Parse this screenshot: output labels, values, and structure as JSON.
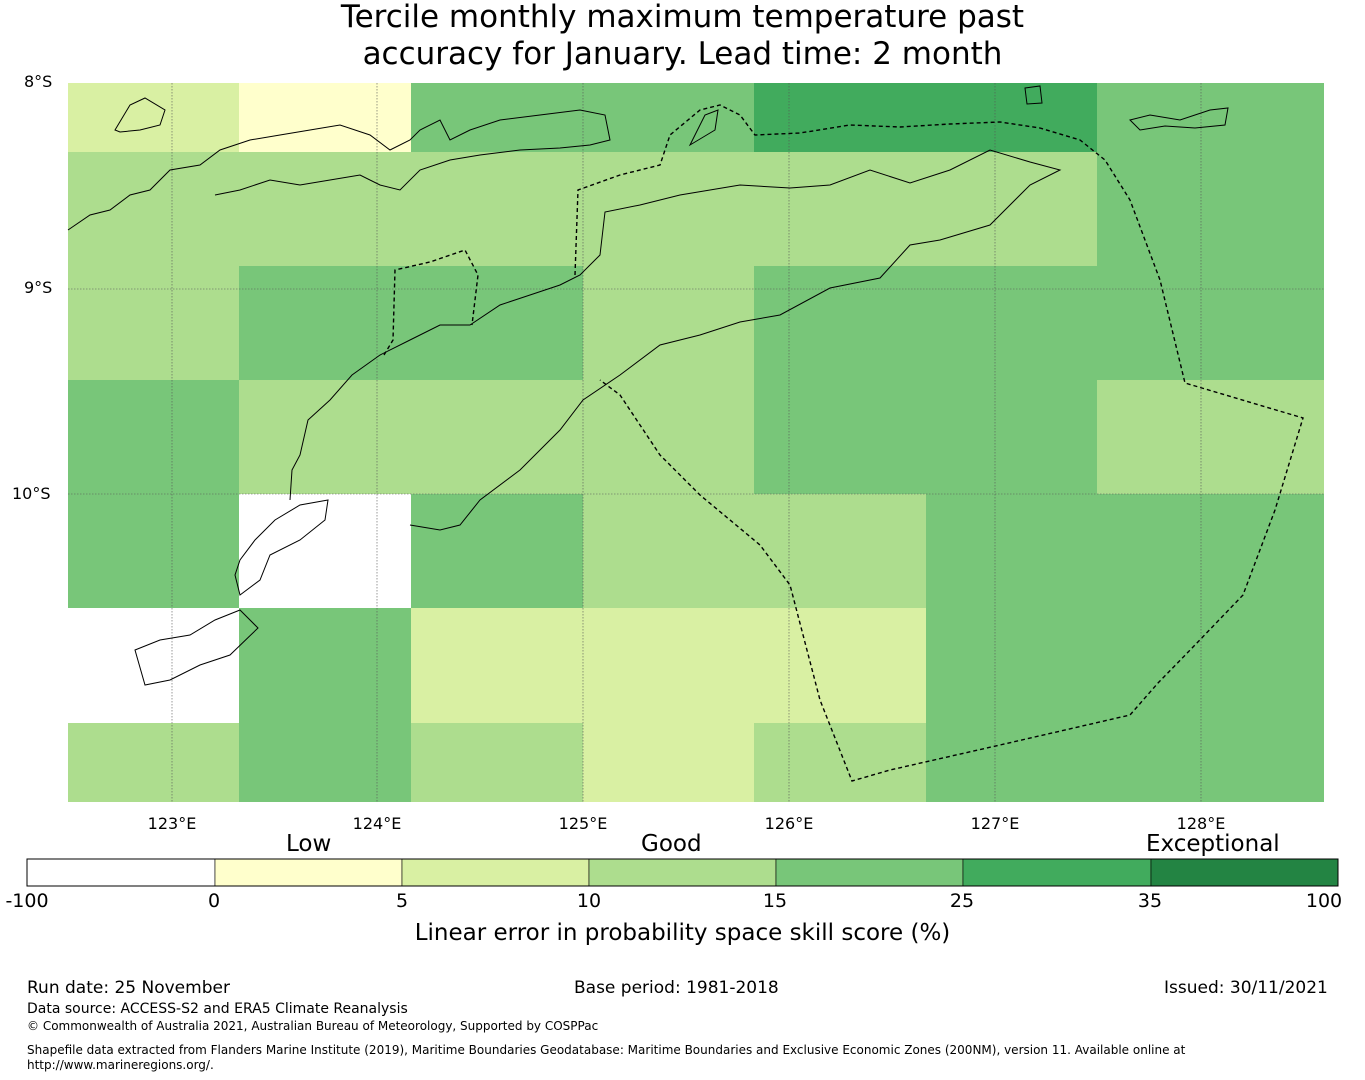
{
  "title": {
    "line1": "Tercile monthly maximum temperature past",
    "line2": "accuracy for January. Lead time: 2 month"
  },
  "map": {
    "lat_labels": [
      "8°S",
      "9°S",
      "10°S"
    ],
    "lon_labels": [
      "123°E",
      "124°E",
      "125°E",
      "126°E",
      "127°E",
      "128°E"
    ],
    "grid_values": [
      [
        5,
        0,
        15,
        15,
        25,
        25,
        15
      ],
      [
        10,
        10,
        10,
        10,
        10,
        10,
        15
      ],
      [
        10,
        15,
        15,
        10,
        15,
        15,
        15
      ],
      [
        15,
        10,
        10,
        10,
        15,
        15,
        10
      ],
      [
        15,
        -100,
        15,
        10,
        10,
        15,
        15
      ],
      [
        -100,
        15,
        5,
        5,
        5,
        15,
        15
      ],
      [
        10,
        15,
        10,
        5,
        10,
        15,
        15
      ]
    ]
  },
  "colorbar": {
    "categories": [
      "Low",
      "Good",
      "Exceptional"
    ],
    "ticks": [
      "-100",
      "0",
      "5",
      "10",
      "15",
      "25",
      "35",
      "100"
    ],
    "colors": [
      "#ffffff",
      "#ffffcc",
      "#d9f0a3",
      "#addd8e",
      "#78c679",
      "#41ab5d",
      "#238443"
    ],
    "label": "Linear error in probability space skill score (%)"
  },
  "footer": {
    "run_date": "Run date: 25 November",
    "base_period": "Base period: 1981-2018",
    "issued": "Issued: 30/11/2021",
    "data_source": "Data source: ACCESS-S2 and ERA5 Climate Reanalysis",
    "copyright": "© Commonwealth of Australia 2021, Australian Bureau of Meteorology, Supported by COSPPac",
    "shapefile_line1": "Shapefile data extracted from Flanders Marine Institute (2019), Maritime Boundaries Geodatabase: Maritime Boundaries and Exclusive Economic Zones (200NM), version 11. Available online at",
    "shapefile_line2": "http://www.marineregions.org/."
  }
}
